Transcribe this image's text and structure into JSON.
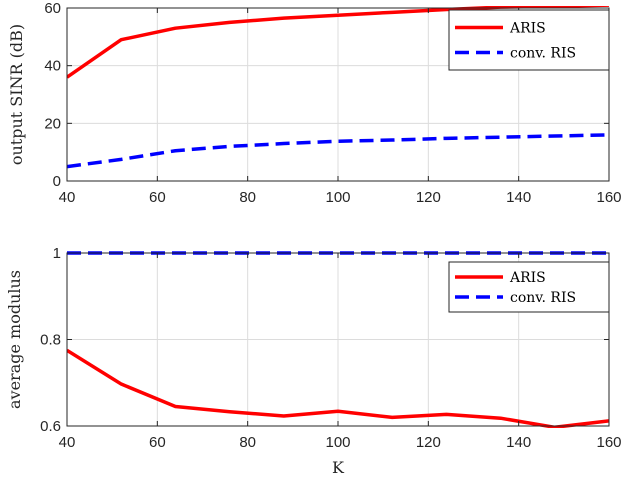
{
  "chart_data": [
    {
      "type": "line",
      "xlabel": "",
      "ylabel": "output SINR (dB)",
      "xlim": [
        40,
        160
      ],
      "ylim": [
        0,
        60
      ],
      "xticks": [
        40,
        60,
        80,
        100,
        120,
        140,
        160
      ],
      "yticks": [
        0,
        20,
        40,
        60
      ],
      "grid": true,
      "legend_position": "top-right",
      "series": [
        {
          "name": "ARIS",
          "color": "#ff0000",
          "dash": "solid",
          "x": [
            40,
            52,
            64,
            76,
            88,
            100,
            112,
            124,
            136,
            148,
            160
          ],
          "values": [
            36,
            49,
            53,
            55,
            56.5,
            57.5,
            58.5,
            59.5,
            60.3,
            60.6,
            61
          ]
        },
        {
          "name": "conv. RIS",
          "color": "#0000ff",
          "dash": "dashed",
          "x": [
            40,
            52,
            64,
            76,
            88,
            100,
            112,
            124,
            136,
            148,
            160
          ],
          "values": [
            5,
            7.5,
            10.5,
            12,
            13,
            13.8,
            14.2,
            14.8,
            15.2,
            15.6,
            16
          ]
        }
      ]
    },
    {
      "type": "line",
      "xlabel": "K",
      "ylabel": "average modulus",
      "xlim": [
        40,
        160
      ],
      "ylim": [
        0.6,
        1.0
      ],
      "xticks": [
        40,
        60,
        80,
        100,
        120,
        140,
        160
      ],
      "yticks": [
        0.6,
        0.8,
        1
      ],
      "grid": true,
      "legend_position": "top-right",
      "series": [
        {
          "name": "ARIS",
          "color": "#ff0000",
          "dash": "solid",
          "x": [
            40,
            52,
            64,
            76,
            88,
            100,
            112,
            124,
            136,
            148,
            160
          ],
          "values": [
            0.775,
            0.697,
            0.645,
            0.633,
            0.623,
            0.634,
            0.62,
            0.627,
            0.618,
            0.597,
            0.612
          ]
        },
        {
          "name": "conv. RIS",
          "color": "#0000ff",
          "dash": "dashed",
          "x": [
            40,
            52,
            64,
            76,
            88,
            100,
            112,
            124,
            136,
            148,
            160
          ],
          "values": [
            1,
            1,
            1,
            1,
            1,
            1,
            1,
            1,
            1,
            1,
            1
          ]
        }
      ]
    }
  ]
}
